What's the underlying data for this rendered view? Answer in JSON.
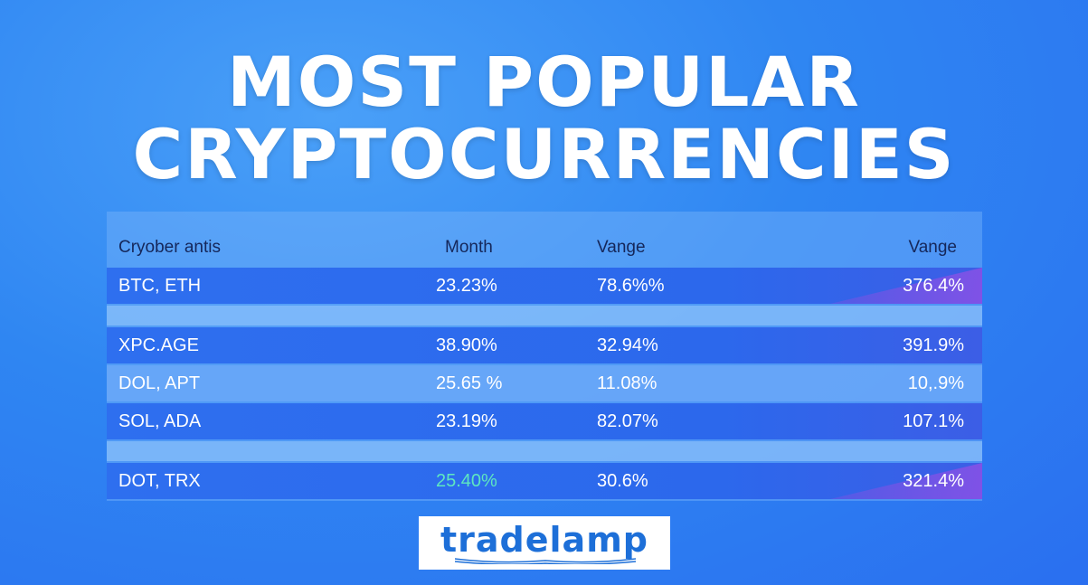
{
  "title": {
    "line1": "MOST POPULAR",
    "line2": "CRYPTOCURRENCIES"
  },
  "table": {
    "headers": [
      "Cryober antis",
      "Month",
      "Vange",
      "Vange"
    ],
    "rows": [
      {
        "name": "BTC, ETH",
        "month": "23.23%",
        "vange1": "78.6%%",
        "vange2": "376.4%"
      },
      {
        "name": "XPC.AGE",
        "month": "38.90%",
        "vange1": "32.94%",
        "vange2": "391.9%"
      },
      {
        "name": "DOL, APT",
        "month": "25.65 %",
        "vange1": "11.08%",
        "vange2": "10,.9%"
      },
      {
        "name": "SOL, ADA",
        "month": "23.19%",
        "vange1": "82.07%",
        "vange2": "107.1%"
      },
      {
        "name": "DOT, TRX",
        "month": "25.40%",
        "vange1": "30.6%",
        "vange2": "321.4%"
      }
    ]
  },
  "logo": {
    "text": "tradelamp"
  },
  "colors": {
    "background": "#2f86f2",
    "dark_row": "#2e6fef",
    "accent_green": "#5ee7c0",
    "accent_purple": "#7c52e4",
    "logo_blue": "#1d6fd8"
  }
}
